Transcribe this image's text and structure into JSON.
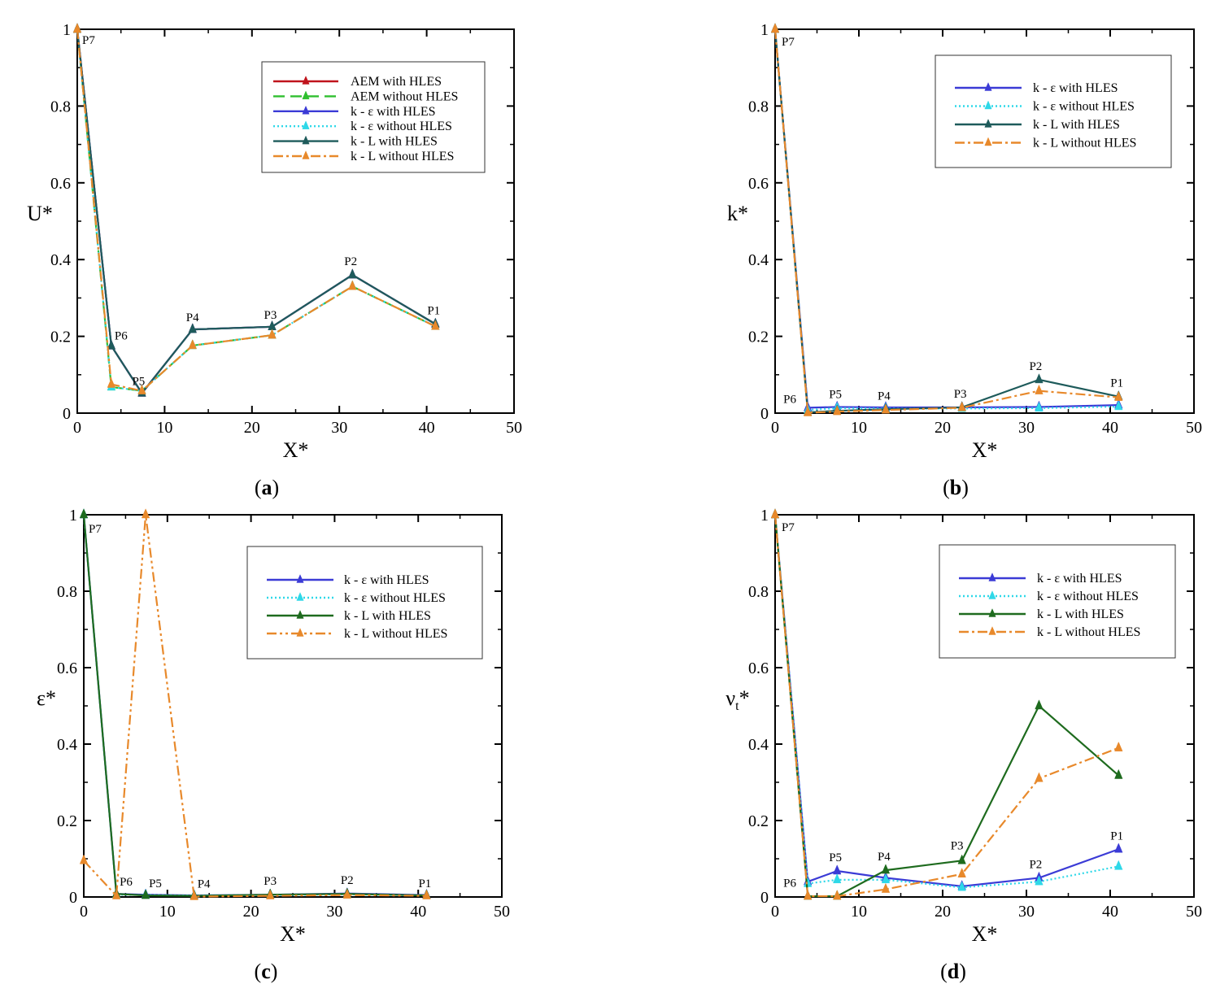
{
  "figure": {
    "panel_count": 4
  },
  "chart_data": [
    {
      "type": "line",
      "panel": "a",
      "caption": {
        "open": "(",
        "letter": "a",
        "close": ")"
      },
      "xlabel": "X*",
      "ylabel": "U*",
      "ylabel_sub": "",
      "xlim": [
        0,
        50
      ],
      "ylim": [
        0,
        1
      ],
      "xticks": [
        "0",
        "10",
        "20",
        "30",
        "40",
        "50"
      ],
      "yticks": [
        "0",
        "0.2",
        "0.4",
        "0.6",
        "0.8",
        "1"
      ],
      "legend_position": "top-right",
      "point_labels": [
        {
          "label": "P7",
          "x": 0,
          "y": 1.0
        },
        {
          "label": "P6",
          "x": 3.9,
          "y": 0.175
        },
        {
          "label": "P5",
          "x": 7.4,
          "y": 0.052
        },
        {
          "label": "P4",
          "x": 13.2,
          "y": 0.218
        },
        {
          "label": "P3",
          "x": 22.3,
          "y": 0.225
        },
        {
          "label": "P2",
          "x": 31.5,
          "y": 0.36
        },
        {
          "label": "P1",
          "x": 41,
          "y": 0.232
        }
      ],
      "series": [
        {
          "name": "AEM with HLES",
          "color": "#c0141c",
          "dash": "solid",
          "x": [
            0,
            3.9,
            7.4,
            13.2,
            22.3,
            31.5,
            41
          ],
          "y": [
            1.0,
            0.175,
            0.052,
            0.218,
            0.225,
            0.36,
            0.232
          ]
        },
        {
          "name": "AEM without HLES",
          "color": "#2fbf2f",
          "dash": "dash",
          "x": [
            0,
            3.9,
            7.4,
            13.2,
            22.3,
            31.5,
            41
          ],
          "y": [
            1.0,
            0.068,
            0.058,
            0.176,
            0.203,
            0.33,
            0.226
          ]
        },
        {
          "name": "k - ε with HLES",
          "color": "#3b3bd6",
          "dash": "solid",
          "x": [
            0,
            3.9,
            7.4,
            13.2,
            22.3,
            31.5,
            41
          ],
          "y": [
            1.0,
            0.175,
            0.052,
            0.218,
            0.225,
            0.36,
            0.232
          ]
        },
        {
          "name": "k - ε without HLES",
          "color": "#2ed8e8",
          "dash": "dot",
          "x": [
            0,
            3.9,
            7.4,
            13.2,
            22.3,
            31.5,
            41
          ],
          "y": [
            1.0,
            0.068,
            0.058,
            0.176,
            0.203,
            0.33,
            0.226
          ]
        },
        {
          "name": "k - L with HLES",
          "color": "#1e5b5b",
          "dash": "solid",
          "x": [
            0,
            3.9,
            7.4,
            13.2,
            22.3,
            31.5,
            41
          ],
          "y": [
            1.0,
            0.175,
            0.052,
            0.218,
            0.225,
            0.36,
            0.232
          ]
        },
        {
          "name": "k - L without HLES",
          "color": "#e8892b",
          "dash": "dashdot",
          "x": [
            0,
            3.9,
            7.4,
            13.2,
            22.3,
            31.5,
            41
          ],
          "y": [
            1.0,
            0.075,
            0.058,
            0.176,
            0.203,
            0.33,
            0.226
          ]
        }
      ]
    },
    {
      "type": "line",
      "panel": "b",
      "caption": {
        "open": "(",
        "letter": "b",
        "close": ")"
      },
      "xlabel": "X*",
      "ylabel": "k*",
      "ylabel_sub": "",
      "xlim": [
        0,
        50
      ],
      "ylim": [
        0,
        1
      ],
      "xticks": [
        "0",
        "10",
        "20",
        "30",
        "40",
        "50"
      ],
      "yticks": [
        "0",
        "0.2",
        "0.4",
        "0.6",
        "0.8",
        "1"
      ],
      "legend_position": "top-right",
      "point_labels": [
        {
          "label": "P7",
          "x": 0,
          "y": 1.0
        },
        {
          "label": "P6",
          "x": 3.9,
          "y": 0.005
        },
        {
          "label": "P5",
          "x": 7.4,
          "y": 0.014
        },
        {
          "label": "P4",
          "x": 13.2,
          "y": 0.01
        },
        {
          "label": "P3",
          "x": 22.3,
          "y": 0.015
        },
        {
          "label": "P2",
          "x": 31.5,
          "y": 0.087
        },
        {
          "label": "P1",
          "x": 41,
          "y": 0.043
        }
      ],
      "series": [
        {
          "name": "k - ε with HLES",
          "color": "#3b3bd6",
          "dash": "solid",
          "x": [
            0,
            3.9,
            7.4,
            13.2,
            22.3,
            31.5,
            41
          ],
          "y": [
            1.0,
            0.014,
            0.016,
            0.015,
            0.015,
            0.016,
            0.021
          ]
        },
        {
          "name": "k - ε without HLES",
          "color": "#2ed8e8",
          "dash": "dot",
          "x": [
            0,
            3.9,
            7.4,
            13.2,
            22.3,
            31.5,
            41
          ],
          "y": [
            1.0,
            0.008,
            0.013,
            0.012,
            0.012,
            0.013,
            0.017
          ]
        },
        {
          "name": "k - L with HLES",
          "color": "#1e5b5b",
          "dash": "solid",
          "x": [
            0,
            3.9,
            7.4,
            13.2,
            22.3,
            31.5,
            41
          ],
          "y": [
            1.0,
            0.002,
            0.006,
            0.01,
            0.015,
            0.087,
            0.043
          ]
        },
        {
          "name": "k - L without HLES",
          "color": "#e8892b",
          "dash": "dashdot",
          "x": [
            0,
            3.9,
            7.4,
            13.2,
            22.3,
            31.5,
            41
          ],
          "y": [
            1.0,
            0.001,
            0.004,
            0.008,
            0.014,
            0.058,
            0.041
          ]
        }
      ]
    },
    {
      "type": "line",
      "panel": "c",
      "caption": {
        "open": "(",
        "letter": "c",
        "close": ")"
      },
      "xlabel": "X*",
      "ylabel": "ε*",
      "ylabel_sub": "",
      "xlim": [
        0,
        50
      ],
      "ylim": [
        0,
        1
      ],
      "xticks": [
        "0",
        "10",
        "20",
        "30",
        "40",
        "50"
      ],
      "yticks": [
        "0",
        "0.2",
        "0.4",
        "0.6",
        "0.8",
        "1"
      ],
      "legend_position": "top-right",
      "point_labels": [
        {
          "label": "P7",
          "x": 0,
          "y": 1.0
        },
        {
          "label": "P6",
          "x": 3.9,
          "y": 0.008
        },
        {
          "label": "P5",
          "x": 7.4,
          "y": 0.004
        },
        {
          "label": "P4",
          "x": 13.2,
          "y": 0.003
        },
        {
          "label": "P3",
          "x": 22.3,
          "y": 0.006
        },
        {
          "label": "P2",
          "x": 31.5,
          "y": 0.008
        },
        {
          "label": "P1",
          "x": 41,
          "y": 0.004
        }
      ],
      "series": [
        {
          "name": "k - ε with HLES",
          "color": "#3b3bd6",
          "dash": "solid",
          "x": [
            0,
            3.9,
            7.4,
            13.2,
            22.3,
            31.5,
            41
          ],
          "y": [
            1.0,
            0.008,
            0.006,
            0.004,
            0.006,
            0.009,
            0.005
          ]
        },
        {
          "name": "k - ε without HLES",
          "color": "#2ed8e8",
          "dash": "dot",
          "x": [
            0,
            3.9,
            7.4,
            13.2,
            22.3,
            31.5,
            41
          ],
          "y": [
            1.0,
            0.006,
            0.005,
            0.004,
            0.005,
            0.007,
            0.004
          ]
        },
        {
          "name": "k - L with HLES",
          "color": "#1e6b1e",
          "dash": "solid",
          "x": [
            0,
            3.9,
            7.4,
            13.2,
            22.3,
            31.5,
            41
          ],
          "y": [
            1.0,
            0.008,
            0.004,
            0.003,
            0.006,
            0.008,
            0.004
          ]
        },
        {
          "name": "k - L without HLES",
          "color": "#e8892b",
          "dash": "dashdotdot",
          "x": [
            0,
            3.9,
            7.4,
            13.2,
            22.3,
            31.5,
            41
          ],
          "y": [
            0.095,
            0.003,
            1.0,
            0.001,
            0.003,
            0.005,
            0.003
          ]
        }
      ]
    },
    {
      "type": "line",
      "panel": "d",
      "caption": {
        "open": "(",
        "letter": "d",
        "close": ")"
      },
      "xlabel": "X*",
      "ylabel": "ν",
      "ylabel_sub": "t",
      "ylabel_suffix": "*",
      "xlim": [
        0,
        50
      ],
      "ylim": [
        0,
        1
      ],
      "xticks": [
        "0",
        "10",
        "20",
        "30",
        "40",
        "50"
      ],
      "yticks": [
        "0",
        "0.2",
        "0.4",
        "0.6",
        "0.8",
        "1"
      ],
      "legend_position": "top-right",
      "point_labels": [
        {
          "label": "P7",
          "x": 0,
          "y": 1.0
        },
        {
          "label": "P6",
          "x": 3.9,
          "y": 0.035
        },
        {
          "label": "P5",
          "x": 7.4,
          "y": 0.068
        },
        {
          "label": "P4",
          "x": 13.2,
          "y": 0.07
        },
        {
          "label": "P3",
          "x": 22.3,
          "y": 0.095
        },
        {
          "label": "P2",
          "x": 31.5,
          "y": 0.05
        },
        {
          "label": "P1",
          "x": 41,
          "y": 0.125
        }
      ],
      "series": [
        {
          "name": "k - ε with HLES",
          "color": "#3b3bd6",
          "dash": "solid",
          "x": [
            0,
            3.9,
            7.4,
            13.2,
            22.3,
            31.5,
            41
          ],
          "y": [
            1.0,
            0.04,
            0.068,
            0.05,
            0.028,
            0.05,
            0.125
          ]
        },
        {
          "name": "k - ε without HLES",
          "color": "#2ed8e8",
          "dash": "dot",
          "x": [
            0,
            3.9,
            7.4,
            13.2,
            22.3,
            31.5,
            41
          ],
          "y": [
            1.0,
            0.035,
            0.045,
            0.045,
            0.025,
            0.04,
            0.08
          ]
        },
        {
          "name": "k - L with HLES",
          "color": "#1e6b1e",
          "dash": "solid",
          "x": [
            0,
            3.9,
            7.4,
            13.2,
            22.3,
            31.5,
            41
          ],
          "y": [
            1.0,
            0.002,
            0.002,
            0.07,
            0.095,
            0.5,
            0.318
          ]
        },
        {
          "name": "k - L without HLES",
          "color": "#e8892b",
          "dash": "dashdot",
          "x": [
            0,
            3.9,
            7.4,
            13.2,
            22.3,
            31.5,
            41
          ],
          "y": [
            1.0,
            0.002,
            0.002,
            0.02,
            0.06,
            0.31,
            0.39
          ]
        }
      ]
    }
  ]
}
